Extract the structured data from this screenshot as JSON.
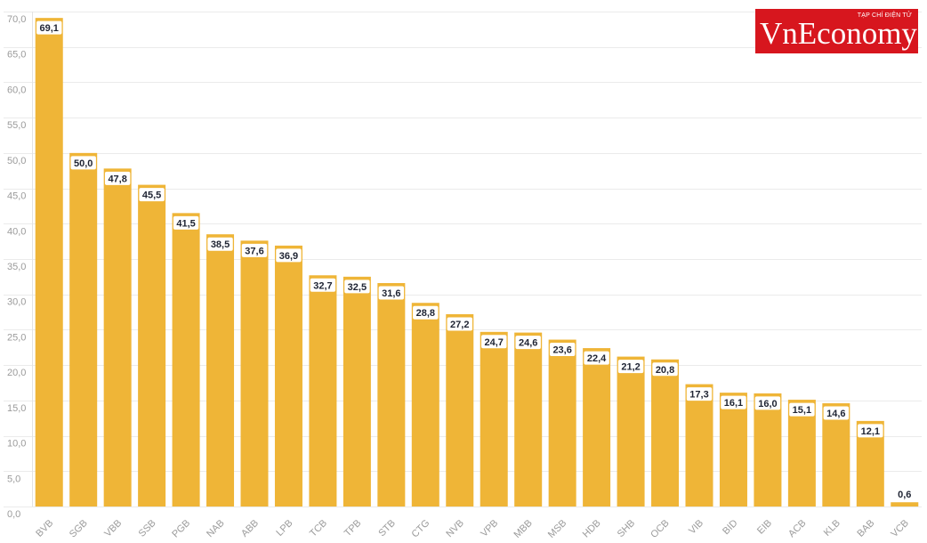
{
  "logo": {
    "name": "VnEconomy",
    "tagline": "TẠP CHÍ ĐIỆN TỬ",
    "background": "#D7161E",
    "text_color": "#FFFFFF"
  },
  "chart_data": {
    "type": "bar",
    "categories": [
      "BVB",
      "SGB",
      "VBB",
      "SSB",
      "PGB",
      "NAB",
      "ABB",
      "LPB",
      "TCB",
      "TPB",
      "STB",
      "CTG",
      "NVB",
      "VPB",
      "MBB",
      "MSB",
      "HDB",
      "SHB",
      "OCB",
      "VIB",
      "BID",
      "EIB",
      "ACB",
      "KLB",
      "BAB",
      "VCB"
    ],
    "values": [
      69.1,
      50.0,
      47.8,
      45.5,
      41.5,
      38.5,
      37.6,
      36.9,
      32.7,
      32.5,
      31.6,
      28.8,
      27.2,
      24.7,
      24.6,
      23.6,
      22.4,
      21.2,
      20.8,
      17.3,
      16.1,
      16.0,
      15.1,
      14.6,
      12.1,
      0.6
    ],
    "value_labels": [
      "69,1",
      "50,0",
      "47,8",
      "45,5",
      "41,5",
      "38,5",
      "37,6",
      "36,9",
      "32,7",
      "32,5",
      "31,6",
      "28,8",
      "27,2",
      "24,7",
      "24,6",
      "23,6",
      "22,4",
      "21,2",
      "20,8",
      "17,3",
      "16,1",
      "16,0",
      "15,1",
      "14,6",
      "12,1",
      "0,6"
    ],
    "yticks": [
      0,
      5,
      10,
      15,
      20,
      25,
      30,
      35,
      40,
      45,
      50,
      55,
      60,
      65,
      70
    ],
    "ytick_labels": [
      "0,0",
      "5,0",
      "10,0",
      "15,0",
      "20,0",
      "25,0",
      "30,0",
      "35,0",
      "40,0",
      "45,0",
      "50,0",
      "55,0",
      "60,0",
      "65,0",
      "70,0"
    ],
    "ylim": [
      0,
      70
    ],
    "grid": true,
    "bar_color": "#EFB537"
  }
}
